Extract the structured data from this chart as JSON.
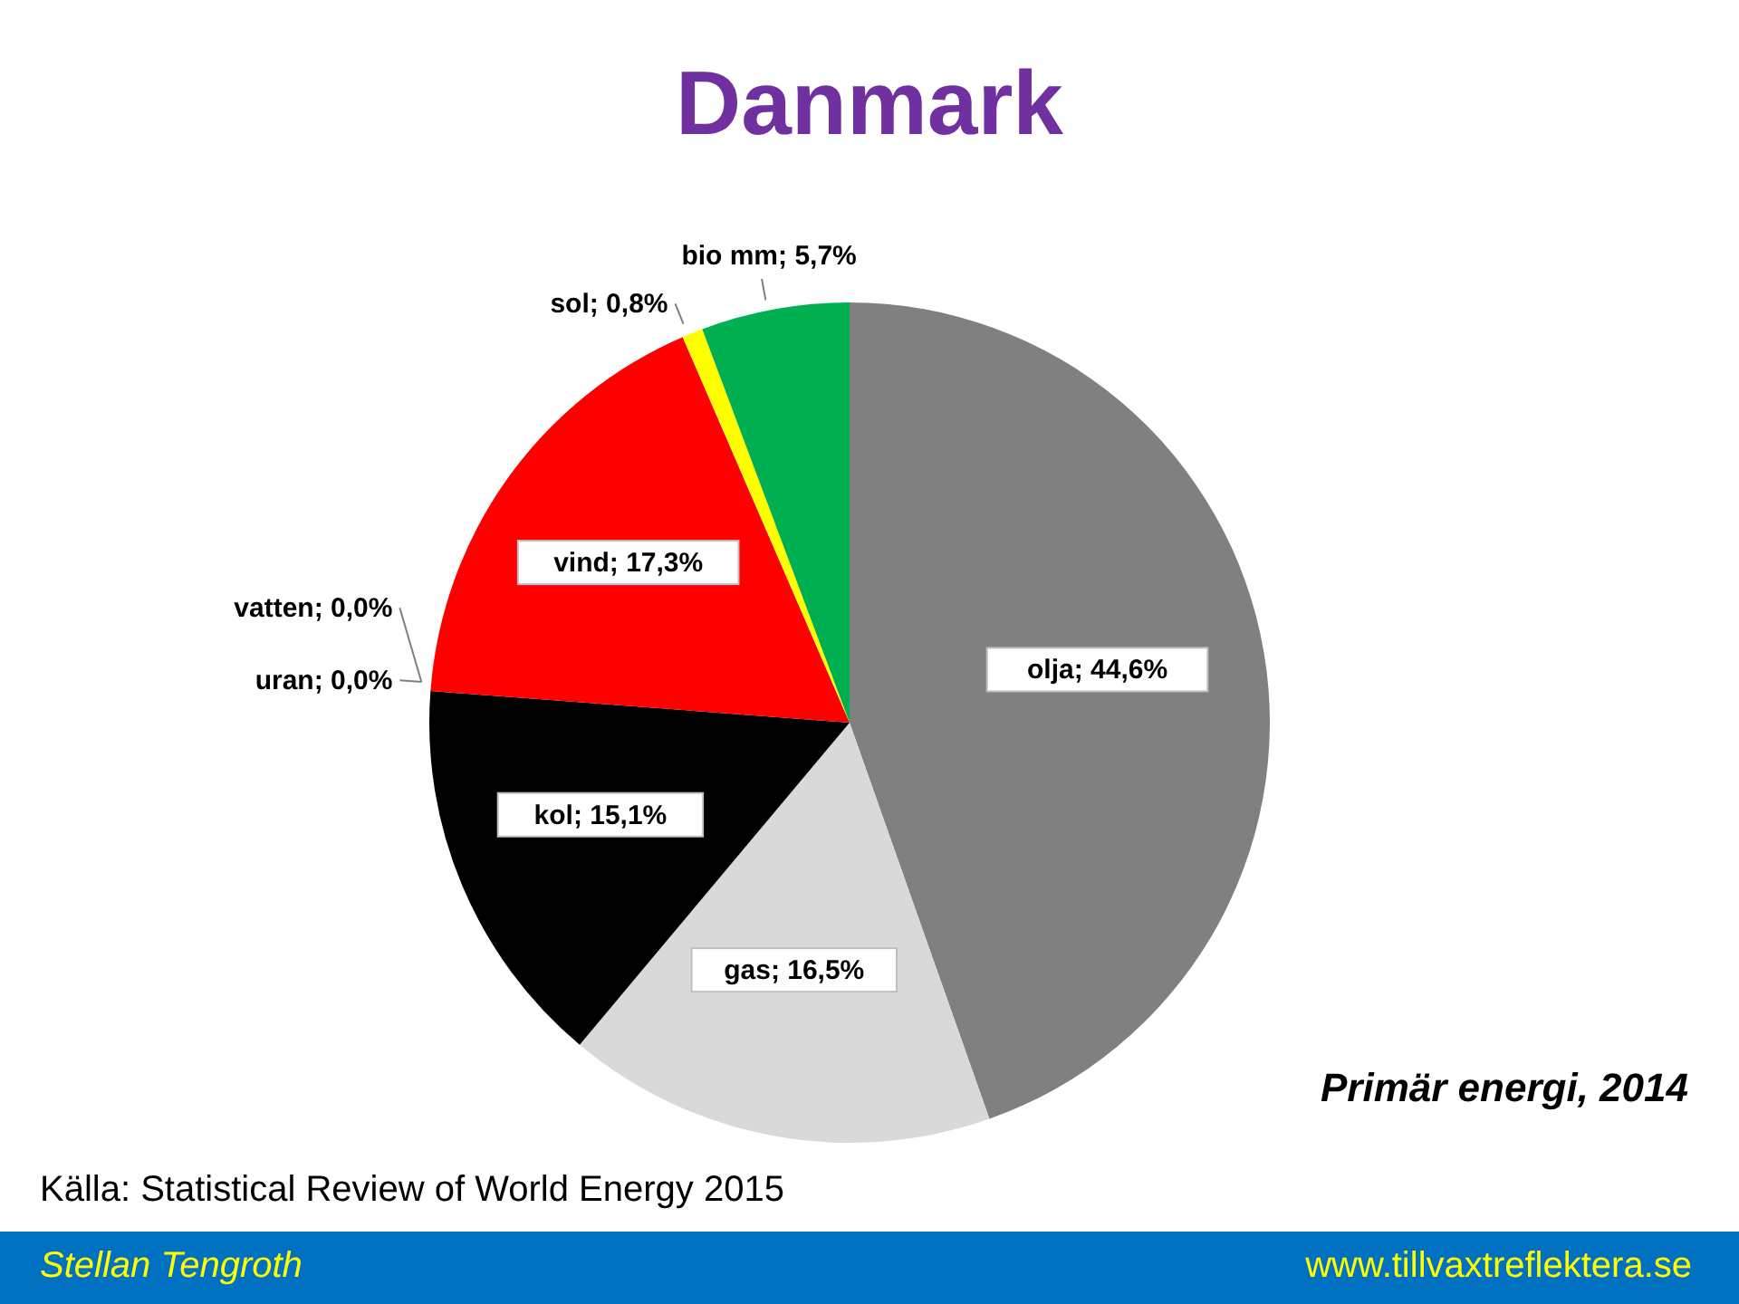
{
  "chart_data": {
    "type": "pie",
    "title": "Danmark",
    "categories": [
      "olja",
      "gas",
      "kol",
      "uran",
      "vatten",
      "vind",
      "sol",
      "bio mm"
    ],
    "values": [
      44.6,
      16.5,
      15.1,
      0.0,
      0.0,
      17.3,
      0.8,
      5.7
    ],
    "value_labels": [
      "; 44,6%",
      "; 16,5%",
      "; 15,1%",
      "; 0,0%",
      "; 0,0%",
      "; 17,3%",
      "; 0,8%",
      "; 5,7%"
    ],
    "colors": [
      "#808080",
      "#d9d9d9",
      "#000000",
      "#4f81bd",
      "#8064a2",
      "#ff0000",
      "#ffff00",
      "#00b050"
    ],
    "legend": false,
    "annotations": [
      "Primär energi, 2014",
      "Källa: Statistical Review of World Energy 2015",
      "Stellan Tengroth",
      "www.tillvaxtreflektera.se"
    ]
  }
}
